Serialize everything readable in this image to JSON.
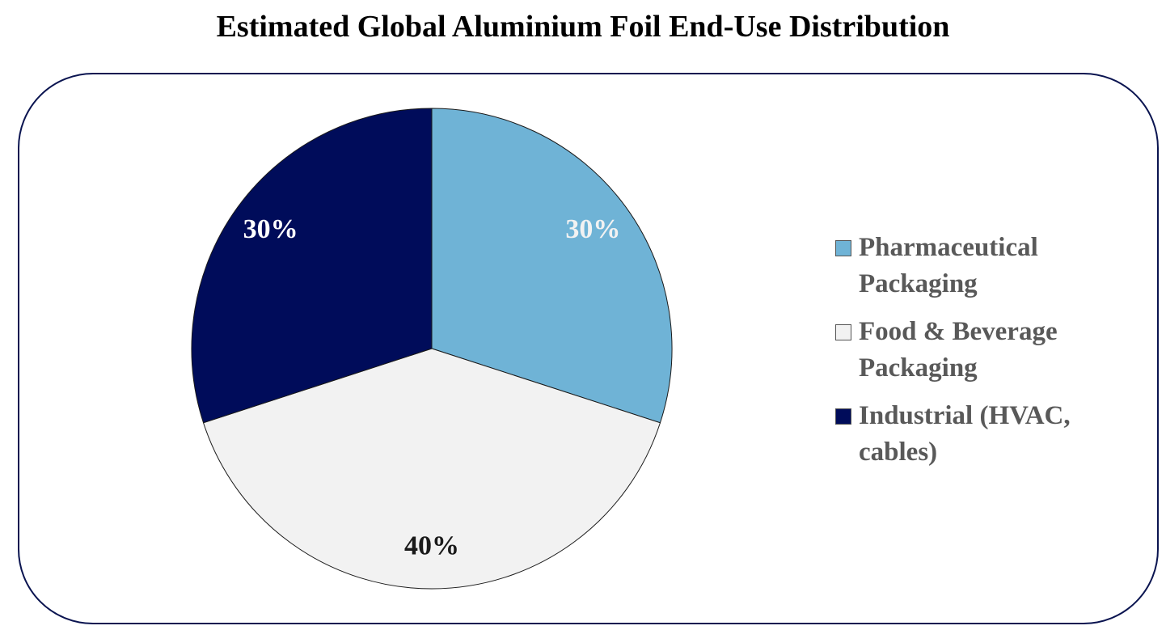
{
  "chart_data": {
    "type": "pie",
    "title": "Estimated Global Aluminium Foil End-Use Distribution",
    "categories": [
      "Pharmaceutical Packaging",
      "Food & Beverage Packaging",
      "Industrial (HVAC, cables)"
    ],
    "values": [
      30,
      40,
      30
    ],
    "value_labels": [
      "30%",
      "40%",
      "30%"
    ],
    "colors": [
      "#6fb3d6",
      "#f2f2f2",
      "#000c5a"
    ],
    "label_colors": [
      "#f2f2f2",
      "#1a1a1a",
      "#ffffff"
    ],
    "legend": "right"
  }
}
